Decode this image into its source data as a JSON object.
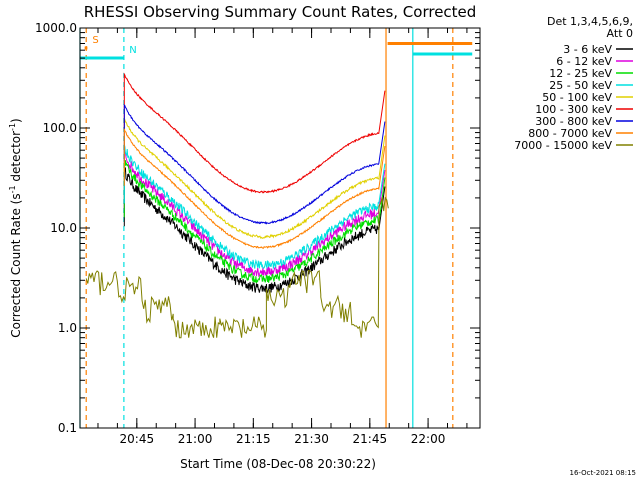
{
  "chart_data": {
    "type": "line",
    "title": "RHESSI Observing Summary Count Rates, Corrected",
    "xlabel": "Start Time (08-Dec-08 20:30:22)",
    "ylabel_main": "Corrected Count Rate (s",
    "ylabel_sup1": "-1",
    "ylabel_mid": " detector",
    "ylabel_sup2": "-1",
    "ylabel_end": ")",
    "y_scale": "log",
    "ylim": [
      0.1,
      1000
    ],
    "xlim_minutes": [
      0,
      103
    ],
    "y_ticks": [
      {
        "v": 0.1,
        "label": "0.1"
      },
      {
        "v": 1,
        "label": "1.0"
      },
      {
        "v": 10,
        "label": "10.0"
      },
      {
        "v": 100,
        "label": "100.0"
      },
      {
        "v": 1000,
        "label": "1000.0"
      }
    ],
    "x_ticks": [
      {
        "m": 14.63,
        "label": "20:45"
      },
      {
        "m": 29.63,
        "label": "21:00"
      },
      {
        "m": 44.63,
        "label": "21:15"
      },
      {
        "m": 59.63,
        "label": "21:30"
      },
      {
        "m": 74.63,
        "label": "21:45"
      },
      {
        "m": 89.63,
        "label": "22:00"
      }
    ],
    "legend_header": [
      "Det 1,3,4,5,6,9,",
      "Att 0"
    ],
    "legend_placement": "right",
    "series": [
      {
        "name": "3 - 6 keV",
        "color": "#000000",
        "level": 13,
        "noise": 0.12
      },
      {
        "name": "6 - 12 keV",
        "color": "#dd00dd",
        "level": 19,
        "noise": 0.12
      },
      {
        "name": "12 - 25 keV",
        "color": "#00dd00",
        "level": 16,
        "noise": 0.1
      },
      {
        "name": "25 - 50 keV",
        "color": "#00e0e0",
        "level": 22,
        "noise": 0.1
      },
      {
        "name": "50 - 100 keV",
        "color": "#e0d000",
        "level": 42,
        "noise": 0.03
      },
      {
        "name": "100 - 300 keV",
        "color": "#ee0000",
        "level": 118,
        "noise": 0.02
      },
      {
        "name": "300 - 800 keV",
        "color": "#0000dd",
        "level": 58,
        "noise": 0.02
      },
      {
        "name": "800 - 7000 keV",
        "color": "#ff8000",
        "level": 33,
        "noise": 0.02
      },
      {
        "name": "7000 - 15000 keV",
        "color": "#808000",
        "level": 3,
        "noise": 0.0
      }
    ],
    "flags": [
      {
        "label": "S",
        "color": "#ff8000",
        "span_minutes": [
          1.2,
          1.9
        ]
      },
      {
        "label": "N",
        "color": "#00e0e0",
        "span_minutes": [
          0,
          11.4
        ]
      }
    ],
    "saa_bars": [
      {
        "color": "#ff8000",
        "span_minutes": [
          79.2,
          101
        ],
        "value": 700
      },
      {
        "color": "#00e0e0",
        "span_minutes": [
          85.7,
          101
        ],
        "value": 550
      }
    ],
    "vlines": [
      {
        "m": 0,
        "color": "#00e0e0",
        "style": "solid"
      },
      {
        "m": 1.6,
        "color": "#ff8000",
        "style": "dashed"
      },
      {
        "m": 11.3,
        "color": "#00e0e0",
        "style": "dashed"
      },
      {
        "m": 78.8,
        "color": "#ff8000",
        "style": "solid"
      },
      {
        "m": 85.7,
        "color": "#00e0e0",
        "style": "solid"
      },
      {
        "m": 96.0,
        "color": "#ff8000",
        "style": "dashed"
      }
    ]
  },
  "footer_date": "16-Oct-2021 08:15"
}
